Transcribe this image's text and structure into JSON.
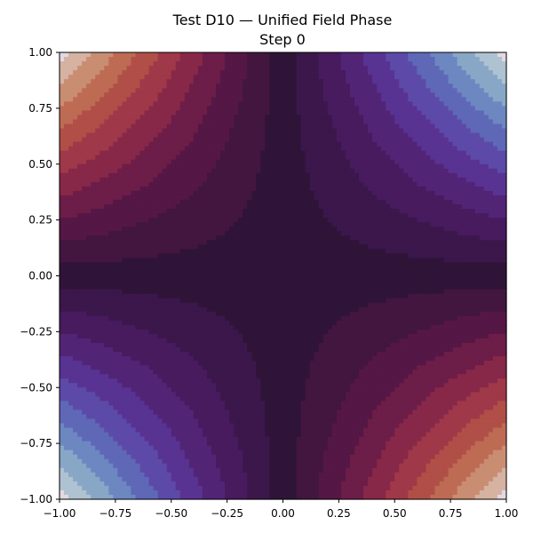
{
  "chart_data": {
    "type": "heatmap",
    "title": "Test D10 — Unified Field Phase",
    "subtitle": "Step 0",
    "xlabel": "",
    "ylabel": "",
    "xlim": [
      -1.0,
      1.0
    ],
    "ylim": [
      -1.0,
      1.0
    ],
    "x_ticks": [
      "−1.00",
      "−0.75",
      "−0.50",
      "−0.25",
      "0.00",
      "0.25",
      "0.50",
      "0.75",
      "1.00"
    ],
    "y_ticks": [
      "1.00",
      "0.75",
      "0.50",
      "0.25",
      "0.00",
      "−0.25",
      "−0.50",
      "−0.75",
      "−1.00"
    ],
    "x_tick_values": [
      -1.0,
      -0.75,
      -0.5,
      -0.25,
      0.0,
      0.25,
      0.5,
      0.75,
      1.0
    ],
    "y_tick_values": [
      1.0,
      0.75,
      0.5,
      0.25,
      0.0,
      -0.25,
      -0.5,
      -0.75,
      -1.0
    ],
    "field": "phase proportional to x*y (saddle), cyclic colormap",
    "grid_resolution": 100,
    "colormap": "twilight_shifted",
    "grid": false,
    "legend": "none"
  }
}
